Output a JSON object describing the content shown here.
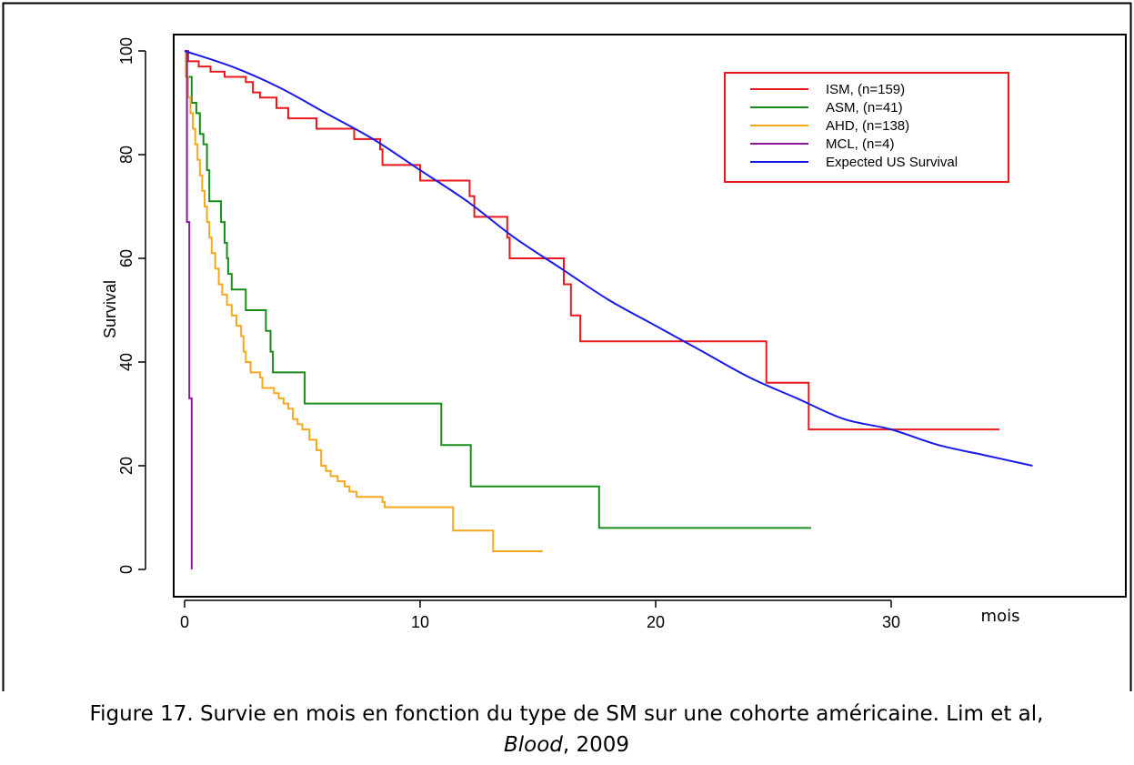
{
  "chart_data": {
    "type": "line",
    "title": "",
    "xlabel": "mois",
    "ylabel": "Survival",
    "xlim": [
      0,
      36
    ],
    "ylim": [
      0,
      100
    ],
    "x_ticks": [
      0,
      10,
      20,
      30
    ],
    "y_ticks": [
      0,
      20,
      40,
      60,
      80,
      100
    ],
    "legend_position": "top-right",
    "series": [
      {
        "name": "ISM, (n=159)",
        "color": "#e8191c",
        "step": true,
        "points": [
          [
            0,
            100
          ],
          [
            0.15,
            98
          ],
          [
            0.6,
            97
          ],
          [
            1.1,
            96
          ],
          [
            1.6,
            96
          ],
          [
            1.7,
            95
          ],
          [
            2.5,
            95
          ],
          [
            2.6,
            94
          ],
          [
            2.9,
            92
          ],
          [
            3.2,
            91
          ],
          [
            3.5,
            91
          ],
          [
            3.9,
            89
          ],
          [
            4.4,
            87
          ],
          [
            5.5,
            87
          ],
          [
            5.6,
            85
          ],
          [
            7.1,
            85
          ],
          [
            7.2,
            83
          ],
          [
            8.2,
            83
          ],
          [
            8.3,
            81
          ],
          [
            8.4,
            78
          ],
          [
            9.9,
            78
          ],
          [
            10,
            75
          ],
          [
            12,
            75
          ],
          [
            12.1,
            72
          ],
          [
            12.3,
            68
          ],
          [
            13.5,
            68
          ],
          [
            13.7,
            64
          ],
          [
            13.8,
            60
          ],
          [
            16.0,
            60
          ],
          [
            16.1,
            55
          ],
          [
            16.4,
            49
          ],
          [
            16.8,
            44
          ],
          [
            24.6,
            44
          ],
          [
            24.7,
            36
          ],
          [
            26.4,
            36
          ],
          [
            26.5,
            27
          ],
          [
            34.6,
            27
          ]
        ]
      },
      {
        "name": "ASM, (n=41)",
        "color": "#1a8c1a",
        "step": true,
        "points": [
          [
            0,
            100
          ],
          [
            0.1,
            95
          ],
          [
            0.3,
            90
          ],
          [
            0.5,
            88
          ],
          [
            0.65,
            84
          ],
          [
            0.8,
            82
          ],
          [
            0.95,
            77
          ],
          [
            1.05,
            71
          ],
          [
            1.45,
            71
          ],
          [
            1.55,
            67
          ],
          [
            1.7,
            63
          ],
          [
            1.8,
            60
          ],
          [
            1.85,
            57
          ],
          [
            2.0,
            54
          ],
          [
            2.55,
            54
          ],
          [
            2.6,
            50
          ],
          [
            3.4,
            50
          ],
          [
            3.45,
            46
          ],
          [
            3.65,
            42
          ],
          [
            3.75,
            38
          ],
          [
            5.05,
            38
          ],
          [
            5.1,
            32
          ],
          [
            10.85,
            32
          ],
          [
            10.9,
            24
          ],
          [
            12.1,
            24
          ],
          [
            12.15,
            16
          ],
          [
            17.55,
            16
          ],
          [
            17.6,
            8
          ],
          [
            26.6,
            8
          ]
        ]
      },
      {
        "name": "AHD, (n=138)",
        "color": "#f4a81d",
        "step": true,
        "points": [
          [
            0,
            100
          ],
          [
            0.05,
            95
          ],
          [
            0.15,
            91
          ],
          [
            0.25,
            88
          ],
          [
            0.35,
            85
          ],
          [
            0.45,
            82
          ],
          [
            0.55,
            79
          ],
          [
            0.65,
            76
          ],
          [
            0.75,
            73
          ],
          [
            0.85,
            70
          ],
          [
            0.95,
            67
          ],
          [
            1.05,
            64
          ],
          [
            1.15,
            61
          ],
          [
            1.3,
            58
          ],
          [
            1.45,
            55
          ],
          [
            1.6,
            53
          ],
          [
            1.8,
            51
          ],
          [
            2.0,
            49
          ],
          [
            2.2,
            47
          ],
          [
            2.4,
            45
          ],
          [
            2.5,
            42
          ],
          [
            2.6,
            40
          ],
          [
            2.8,
            38
          ],
          [
            3.2,
            37
          ],
          [
            3.3,
            35
          ],
          [
            3.8,
            34
          ],
          [
            4.0,
            33
          ],
          [
            4.2,
            32
          ],
          [
            4.4,
            31
          ],
          [
            4.6,
            29
          ],
          [
            4.8,
            28
          ],
          [
            5.0,
            27
          ],
          [
            5.3,
            25
          ],
          [
            5.6,
            23
          ],
          [
            5.8,
            20
          ],
          [
            6.0,
            19
          ],
          [
            6.2,
            18
          ],
          [
            6.5,
            17
          ],
          [
            6.8,
            16
          ],
          [
            7.0,
            15
          ],
          [
            7.3,
            14
          ],
          [
            8.4,
            13
          ],
          [
            8.5,
            12
          ],
          [
            11.3,
            12
          ],
          [
            11.4,
            7.5
          ],
          [
            13.0,
            7.5
          ],
          [
            13.1,
            3.5
          ],
          [
            15.2,
            3.5
          ]
        ]
      },
      {
        "name": "MCL, (n=4)",
        "color": "#8b1a99",
        "step": true,
        "points": [
          [
            0,
            100
          ],
          [
            0.1,
            67
          ],
          [
            0.2,
            33
          ],
          [
            0.3,
            0
          ]
        ]
      },
      {
        "name": "Expected US Survival",
        "color": "#1a1ae6",
        "step": false,
        "points": [
          [
            0,
            100
          ],
          [
            2,
            97
          ],
          [
            4,
            93
          ],
          [
            6,
            88
          ],
          [
            8,
            83
          ],
          [
            10,
            77
          ],
          [
            12,
            71
          ],
          [
            14,
            64
          ],
          [
            16,
            58
          ],
          [
            18,
            52
          ],
          [
            20,
            47
          ],
          [
            22,
            42
          ],
          [
            24,
            37
          ],
          [
            26,
            33
          ],
          [
            28,
            29
          ],
          [
            30,
            27
          ],
          [
            32,
            24
          ],
          [
            34,
            22
          ],
          [
            36,
            20
          ]
        ]
      }
    ]
  },
  "caption": {
    "line1": "Figure 17. Survie en mois en fonction du type de SM sur une cohorte américaine. Lim et al,",
    "line2_journal": "Blood",
    "line2_rest": ", 2009"
  }
}
